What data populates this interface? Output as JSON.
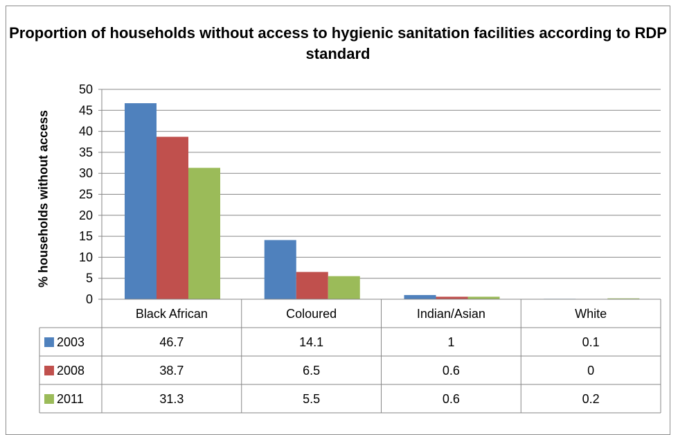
{
  "chart_data": {
    "type": "bar",
    "title": "Proportion of households without access to hygienic sanitation facilities according to RDP standard",
    "ylabel": "% households without access",
    "xlabel": "",
    "ylim": [
      0,
      50
    ],
    "yticks": [
      0,
      5,
      10,
      15,
      20,
      25,
      30,
      35,
      40,
      45,
      50
    ],
    "grid": true,
    "legend": "data-table",
    "categories": [
      "Black African",
      "Coloured",
      "Indian/Asian",
      "White"
    ],
    "series": [
      {
        "name": "2003",
        "color": "#4f81bd",
        "values": [
          46.7,
          14.1,
          1,
          0.1
        ]
      },
      {
        "name": "2008",
        "color": "#c0504d",
        "values": [
          38.7,
          6.5,
          0.6,
          0
        ]
      },
      {
        "name": "2011",
        "color": "#9bbb59",
        "values": [
          31.3,
          5.5,
          0.6,
          0.2
        ]
      }
    ]
  }
}
